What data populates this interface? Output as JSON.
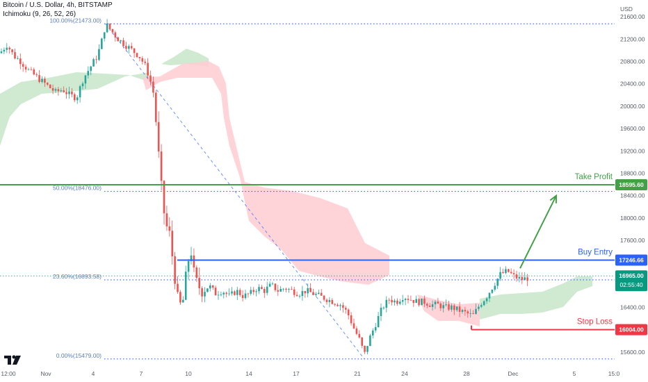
{
  "header": {
    "symbol_title": "Bitcoin / U.S. Dollar, 4h, BITSTAMP",
    "indicator_label": "Ichimoku (9, 26, 52, 26)"
  },
  "currency_label": "USD",
  "colors": {
    "up_candle": "#26a69a",
    "down_candle": "#ef5350",
    "take_profit": "#43a047",
    "buy_entry": "#2962ff",
    "stop_loss": "#f23645",
    "fib_line": "#2962ff",
    "fib_text": "#5b7db8",
    "cloud_bull": "#c8e6c9",
    "cloud_bear": "#ffcdd2",
    "price_tag": "#089981",
    "axis_text": "#555b66"
  },
  "chart_data": {
    "type": "candlestick",
    "title": "Bitcoin / U.S. Dollar, 4h, BITSTAMP",
    "timeframe": "4h",
    "x_tick_labels": [
      "12:00",
      "Nov",
      "4",
      "7",
      "10",
      "14",
      "17",
      "21",
      "24",
      "28",
      "Dec",
      "5",
      "15:0"
    ],
    "y_tick_labels": [
      "15600.00",
      "16000.00",
      "16400.00",
      "16800.00",
      "17200.00",
      "17600.00",
      "18000.00",
      "18400.00",
      "18800.00",
      "19200.00",
      "19600.00",
      "20000.00",
      "20400.00",
      "20800.00",
      "21200.00",
      "21600.00"
    ],
    "ylim": [
      15440,
      21800
    ],
    "fibonacci": [
      {
        "level": "100.00%",
        "price": 21473.0,
        "label": "100.00%(21473.00)"
      },
      {
        "level": "50.00%",
        "price": 18476.0,
        "label": "50.00%(18476.00)"
      },
      {
        "level": "23.60%",
        "price": 16893.58,
        "label": "23.60%(16893.58)"
      },
      {
        "level": "0.00%",
        "price": 15479.0,
        "label": "0.00%(15479.00)"
      }
    ],
    "annotations": [
      {
        "name": "Take Profit",
        "price": 18595.6,
        "price_label": "18595.60"
      },
      {
        "name": "Buy Entry",
        "price": 17246.66,
        "price_label": "17246.66"
      },
      {
        "name": "Stop Loss",
        "price": 16004.0,
        "price_label": "16004.00"
      }
    ],
    "last_price": {
      "price": 16965.0,
      "label": "16965.00",
      "countdown": "02:55:40"
    },
    "price_path_keypoints": [
      [
        0,
        20950
      ],
      [
        10,
        21100
      ],
      [
        20,
        20900
      ],
      [
        30,
        20800
      ],
      [
        40,
        20650
      ],
      [
        50,
        20550
      ],
      [
        60,
        20450
      ],
      [
        70,
        20350
      ],
      [
        80,
        20250
      ],
      [
        90,
        20300
      ],
      [
        100,
        20200
      ],
      [
        110,
        20150
      ],
      [
        120,
        20500
      ],
      [
        130,
        20700
      ],
      [
        140,
        20900
      ],
      [
        147,
        21200
      ],
      [
        152,
        21470
      ],
      [
        160,
        21350
      ],
      [
        170,
        21200
      ],
      [
        180,
        21100
      ],
      [
        190,
        21000
      ],
      [
        200,
        20900
      ],
      [
        210,
        20700
      ],
      [
        220,
        20300
      ],
      [
        226,
        19500
      ],
      [
        230,
        18800
      ],
      [
        234,
        18300
      ],
      [
        238,
        17900
      ],
      [
        244,
        17700
      ],
      [
        250,
        17100
      ],
      [
        256,
        16500
      ],
      [
        262,
        16400
      ],
      [
        268,
        17000
      ],
      [
        274,
        17500
      ],
      [
        280,
        16900
      ],
      [
        290,
        16700
      ],
      [
        300,
        16800
      ],
      [
        310,
        16650
      ],
      [
        320,
        16700
      ],
      [
        330,
        16600
      ],
      [
        340,
        16700
      ],
      [
        350,
        16600
      ],
      [
        360,
        16650
      ],
      [
        370,
        16750
      ],
      [
        380,
        16700
      ],
      [
        390,
        16800
      ],
      [
        400,
        16700
      ],
      [
        410,
        16750
      ],
      [
        420,
        16700
      ],
      [
        430,
        16650
      ],
      [
        440,
        16700
      ],
      [
        450,
        16650
      ],
      [
        460,
        16600
      ],
      [
        470,
        16550
      ],
      [
        480,
        16500
      ],
      [
        490,
        16450
      ],
      [
        500,
        16300
      ],
      [
        510,
        16000
      ],
      [
        518,
        15800
      ],
      [
        524,
        15550
      ],
      [
        530,
        15800
      ],
      [
        540,
        16100
      ],
      [
        550,
        16400
      ],
      [
        560,
        16550
      ],
      [
        570,
        16500
      ],
      [
        580,
        16600
      ],
      [
        590,
        16550
      ],
      [
        600,
        16500
      ],
      [
        610,
        16500
      ],
      [
        620,
        16450
      ],
      [
        630,
        16450
      ],
      [
        640,
        16400
      ],
      [
        650,
        16400
      ],
      [
        660,
        16350
      ],
      [
        670,
        16300
      ],
      [
        680,
        16250
      ],
      [
        690,
        16450
      ],
      [
        700,
        16600
      ],
      [
        710,
        16800
      ],
      [
        720,
        17000
      ],
      [
        730,
        17050
      ],
      [
        740,
        16950
      ],
      [
        750,
        16900
      ],
      [
        760,
        16930
      ]
    ]
  }
}
